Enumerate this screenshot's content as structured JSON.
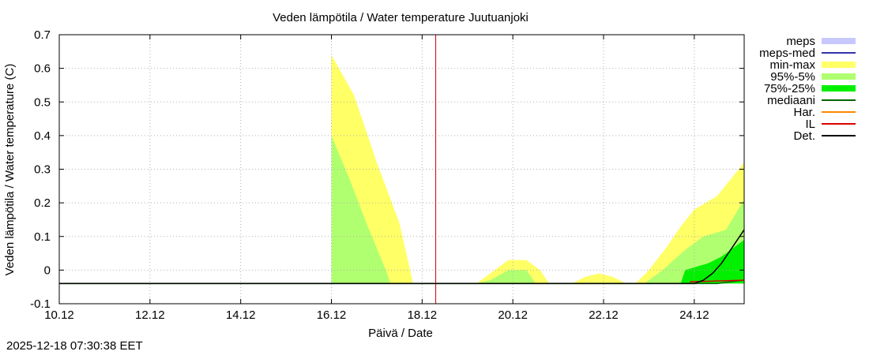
{
  "chart_data": {
    "type": "area",
    "title": "Veden lämpötila / Water temperature Juutuanjoki",
    "xlabel": "Päivä / Date",
    "ylabel": "Veden lämpötila / Water temperature (C)",
    "x_unit": "days since 10.12",
    "xlim": [
      0,
      15.1
    ],
    "ylim": [
      -0.1,
      0.7
    ],
    "yticks": [
      -0.1,
      0,
      0.1,
      0.2,
      0.3,
      0.4,
      0.5,
      0.6,
      0.7
    ],
    "ytick_labels": [
      "-0.1",
      "0",
      "0.1",
      "0.2",
      "0.3",
      "0.4",
      "0.5",
      "0.6",
      "0.7"
    ],
    "xticks": [
      0,
      2,
      4,
      6,
      8,
      10,
      12,
      14
    ],
    "xtick_labels": [
      "10.12",
      "12.12",
      "14.12",
      "16.12",
      "18.12",
      "20.12",
      "22.12",
      "24.12"
    ],
    "grid": true,
    "current_time_x": 8.3,
    "baseline": -0.04,
    "legend": [
      {
        "key": "meps",
        "label": "meps",
        "color": "#c8c8ff",
        "style": "box"
      },
      {
        "key": "meps_med",
        "label": "meps-med",
        "color": "#3333aa",
        "style": "line"
      },
      {
        "key": "minmax",
        "label": "min-max",
        "color": "#ffff66",
        "style": "box"
      },
      {
        "key": "p95_5",
        "label": "95%-5%",
        "color": "#b0ff70",
        "style": "box"
      },
      {
        "key": "p75_25",
        "label": "75%-25%",
        "color": "#00f000",
        "style": "box"
      },
      {
        "key": "mediaani",
        "label": "mediaani",
        "color": "#006600",
        "style": "line"
      },
      {
        "key": "har",
        "label": "Har.",
        "color": "#ff8800",
        "style": "line"
      },
      {
        "key": "il",
        "label": "IL",
        "color": "#dd0000",
        "style": "line"
      },
      {
        "key": "det",
        "label": "Det.",
        "color": "#000000",
        "style": "line"
      }
    ],
    "series": [
      {
        "name": "min-max",
        "color": "#ffff66",
        "x": [
          6.0,
          6.0,
          6.5,
          7.0,
          7.5,
          7.8,
          8.5,
          9.2,
          9.6,
          9.9,
          10.3,
          10.6,
          10.8,
          11.3,
          11.6,
          11.9,
          12.2,
          12.5,
          12.7,
          13.0,
          13.4,
          13.7,
          14.0,
          14.5,
          15.1
        ],
        "upper": [
          -0.04,
          0.64,
          0.52,
          0.32,
          0.14,
          -0.04,
          -0.04,
          -0.04,
          0.0,
          0.03,
          0.03,
          0.0,
          -0.04,
          -0.04,
          -0.02,
          -0.01,
          -0.02,
          -0.04,
          -0.04,
          0.0,
          0.07,
          0.13,
          0.18,
          0.22,
          0.32
        ]
      },
      {
        "name": "95%-5%",
        "color": "#b0ff70",
        "x": [
          6.0,
          6.0,
          6.4,
          6.8,
          7.2,
          7.3,
          9.2,
          9.5,
          9.9,
          10.3,
          10.5,
          12.9,
          13.3,
          13.8,
          14.2,
          14.7,
          15.1
        ],
        "upper": [
          -0.04,
          0.4,
          0.27,
          0.13,
          0.0,
          -0.04,
          -0.04,
          -0.03,
          0.0,
          0.0,
          -0.04,
          -0.04,
          0.0,
          0.06,
          0.1,
          0.12,
          0.21
        ]
      },
      {
        "name": "75%-25%",
        "color": "#00f000",
        "x": [
          13.7,
          13.8,
          14.3,
          14.6,
          14.9,
          15.1
        ],
        "upper": [
          -0.04,
          0.0,
          0.02,
          0.04,
          0.07,
          0.09
        ]
      },
      {
        "name": "mediaani",
        "color": "#006600",
        "x": [
          0,
          13.5,
          14.2,
          14.5,
          15.1
        ],
        "y": [
          -0.04,
          -0.04,
          -0.04,
          -0.04,
          -0.03
        ]
      },
      {
        "name": "IL",
        "color": "#dd0000",
        "x": [
          13.9,
          15.1
        ],
        "y": [
          -0.035,
          -0.03
        ]
      },
      {
        "name": "Det.",
        "color": "#000000",
        "x": [
          0,
          14.0,
          14.2,
          14.4,
          14.6,
          14.8,
          15.1
        ],
        "y": [
          -0.04,
          -0.04,
          -0.03,
          -0.01,
          0.02,
          0.06,
          0.12
        ]
      }
    ]
  },
  "footer": {
    "timestamp": "2025-12-18 07:30:38 EET"
  }
}
